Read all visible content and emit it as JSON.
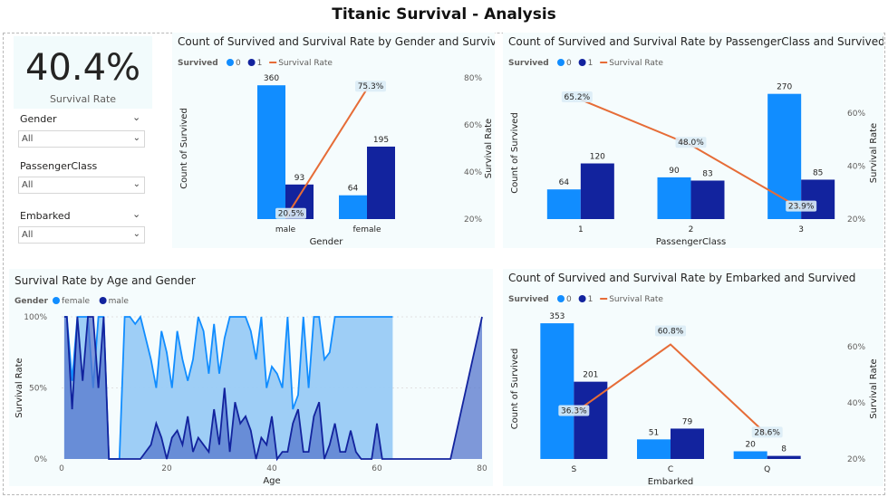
{
  "page_title": "Titanic Survival - Analysis",
  "kpi": {
    "value": "40.4%",
    "label": "Survival Rate"
  },
  "slicers": [
    {
      "label": "Gender",
      "value": "All"
    },
    {
      "label": "PassengerClass",
      "value": "All"
    },
    {
      "label": "Embarked",
      "value": "All"
    }
  ],
  "icons": {
    "dropdown": "chevron-down-icon"
  },
  "colors": {
    "s0": "#118dff",
    "s1": "#12239e",
    "rate": "#e66c37",
    "female": "#118dff",
    "male": "#12239e"
  },
  "chart_data": [
    {
      "id": "gender",
      "type": "bar",
      "title": "Count of Survived and Survival Rate by Gender and Survived",
      "legend_title": "Survived",
      "legend": [
        "0",
        "1",
        "Survival Rate"
      ],
      "categories": [
        "male",
        "female"
      ],
      "series": [
        {
          "name": "0",
          "values": [
            360,
            64
          ]
        },
        {
          "name": "1",
          "values": [
            93,
            195
          ]
        }
      ],
      "line": {
        "name": "Survival Rate",
        "values": [
          20.5,
          75.3
        ],
        "labels": [
          "20.5%",
          "75.3%"
        ]
      },
      "xlabel": "Gender",
      "ylabel": "Count of Survived",
      "y2label": "Survival Rate",
      "ylim": [
        0,
        380
      ],
      "y2lim": [
        20,
        80
      ],
      "y2ticks": [
        "20%",
        "40%",
        "60%",
        "80%"
      ]
    },
    {
      "id": "pclass",
      "type": "bar",
      "title": "Count of Survived and Survival Rate by PassengerClass and Survived",
      "legend_title": "Survived",
      "legend": [
        "0",
        "1",
        "Survival Rate"
      ],
      "categories": [
        "1",
        "2",
        "3"
      ],
      "series": [
        {
          "name": "0",
          "values": [
            64,
            90,
            270
          ]
        },
        {
          "name": "1",
          "values": [
            120,
            83,
            85
          ]
        }
      ],
      "line": {
        "name": "Survival Rate",
        "values": [
          65.2,
          48.0,
          23.9
        ],
        "labels": [
          "65.2%",
          "48.0%",
          "23.9%"
        ]
      },
      "xlabel": "PassengerClass",
      "ylabel": "Count of Survived",
      "y2label": "Survival Rate",
      "ylim": [
        0,
        285
      ],
      "y2lim": [
        20,
        70
      ],
      "y2ticks": [
        "20%",
        "40%",
        "60%"
      ]
    },
    {
      "id": "age",
      "type": "area",
      "title": "Survival Rate by Age and Gender",
      "legend_title": "Gender",
      "legend": [
        "female",
        "male"
      ],
      "xlabel": "Age",
      "ylabel": "Survival Rate",
      "xlim": [
        0,
        80
      ],
      "xticks": [
        "0",
        "20",
        "40",
        "60",
        "80"
      ],
      "ylim": [
        0,
        100
      ],
      "yticks": [
        "0%",
        "50%",
        "100%"
      ],
      "series": [
        {
          "name": "female",
          "x": [
            0.5,
            1,
            2,
            3,
            4,
            5,
            6,
            7,
            8,
            9,
            10,
            11,
            12,
            13,
            14,
            15,
            16,
            17,
            18,
            19,
            20,
            21,
            22,
            23,
            24,
            25,
            26,
            27,
            28,
            29,
            30,
            31,
            32,
            33,
            34,
            35,
            36,
            37,
            38,
            39,
            40,
            41,
            42,
            43,
            44,
            45,
            46,
            47,
            48,
            49,
            50,
            51,
            52,
            53,
            54,
            55,
            56,
            57,
            58,
            59,
            60,
            61,
            62,
            63
          ],
          "y": [
            100,
            100,
            55,
            100,
            100,
            100,
            50,
            100,
            100,
            0,
            0,
            0,
            100,
            100,
            95,
            100,
            85,
            70,
            50,
            90,
            75,
            50,
            90,
            70,
            55,
            70,
            100,
            90,
            60,
            95,
            60,
            85,
            100,
            100,
            100,
            100,
            90,
            70,
            100,
            50,
            65,
            60,
            50,
            100,
            35,
            45,
            100,
            50,
            100,
            100,
            70,
            75,
            100,
            100,
            100,
            100,
            100,
            100,
            100,
            100,
            100,
            100,
            100,
            100
          ]
        },
        {
          "name": "male",
          "x": [
            0.5,
            1,
            2,
            3,
            4,
            5,
            6,
            7,
            8,
            9,
            10,
            11,
            12,
            13,
            14,
            15,
            16,
            17,
            18,
            19,
            20,
            21,
            22,
            23,
            24,
            25,
            26,
            27,
            28,
            29,
            30,
            31,
            32,
            33,
            34,
            35,
            36,
            37,
            38,
            39,
            40,
            41,
            42,
            43,
            44,
            45,
            46,
            47,
            48,
            49,
            50,
            51,
            52,
            53,
            54,
            55,
            56,
            57,
            58,
            59,
            60,
            61,
            62,
            63,
            65,
            66,
            70,
            71,
            74,
            80
          ],
          "y": [
            100,
            100,
            35,
            100,
            55,
            100,
            100,
            50,
            100,
            0,
            0,
            0,
            0,
            0,
            0,
            0,
            5,
            10,
            25,
            15,
            0,
            15,
            20,
            10,
            30,
            5,
            15,
            10,
            5,
            35,
            10,
            50,
            5,
            40,
            25,
            30,
            20,
            0,
            15,
            10,
            30,
            0,
            5,
            5,
            25,
            35,
            5,
            5,
            30,
            40,
            0,
            10,
            25,
            5,
            5,
            20,
            5,
            0,
            0,
            0,
            25,
            0,
            0,
            0,
            0,
            0,
            0,
            0,
            0,
            100
          ]
        }
      ]
    },
    {
      "id": "embarked",
      "type": "bar",
      "title": "Count of Survived and Survival Rate by Embarked and Survived",
      "legend_title": "Survived",
      "legend": [
        "0",
        "1",
        "Survival Rate"
      ],
      "categories": [
        "S",
        "C",
        "Q"
      ],
      "series": [
        {
          "name": "0",
          "values": [
            353,
            51,
            20
          ]
        },
        {
          "name": "1",
          "values": [
            201,
            79,
            8
          ]
        }
      ],
      "line": {
        "name": "Survival Rate",
        "values": [
          36.3,
          60.8,
          28.6
        ],
        "labels": [
          "36.3%",
          "60.8%",
          "28.6%"
        ]
      },
      "xlabel": "Embarked",
      "ylabel": "Count of Survived",
      "y2label": "Survival Rate",
      "ylim": [
        0,
        365
      ],
      "y2lim": [
        20,
        70
      ],
      "y2ticks": [
        "20%",
        "40%",
        "60%"
      ]
    }
  ]
}
